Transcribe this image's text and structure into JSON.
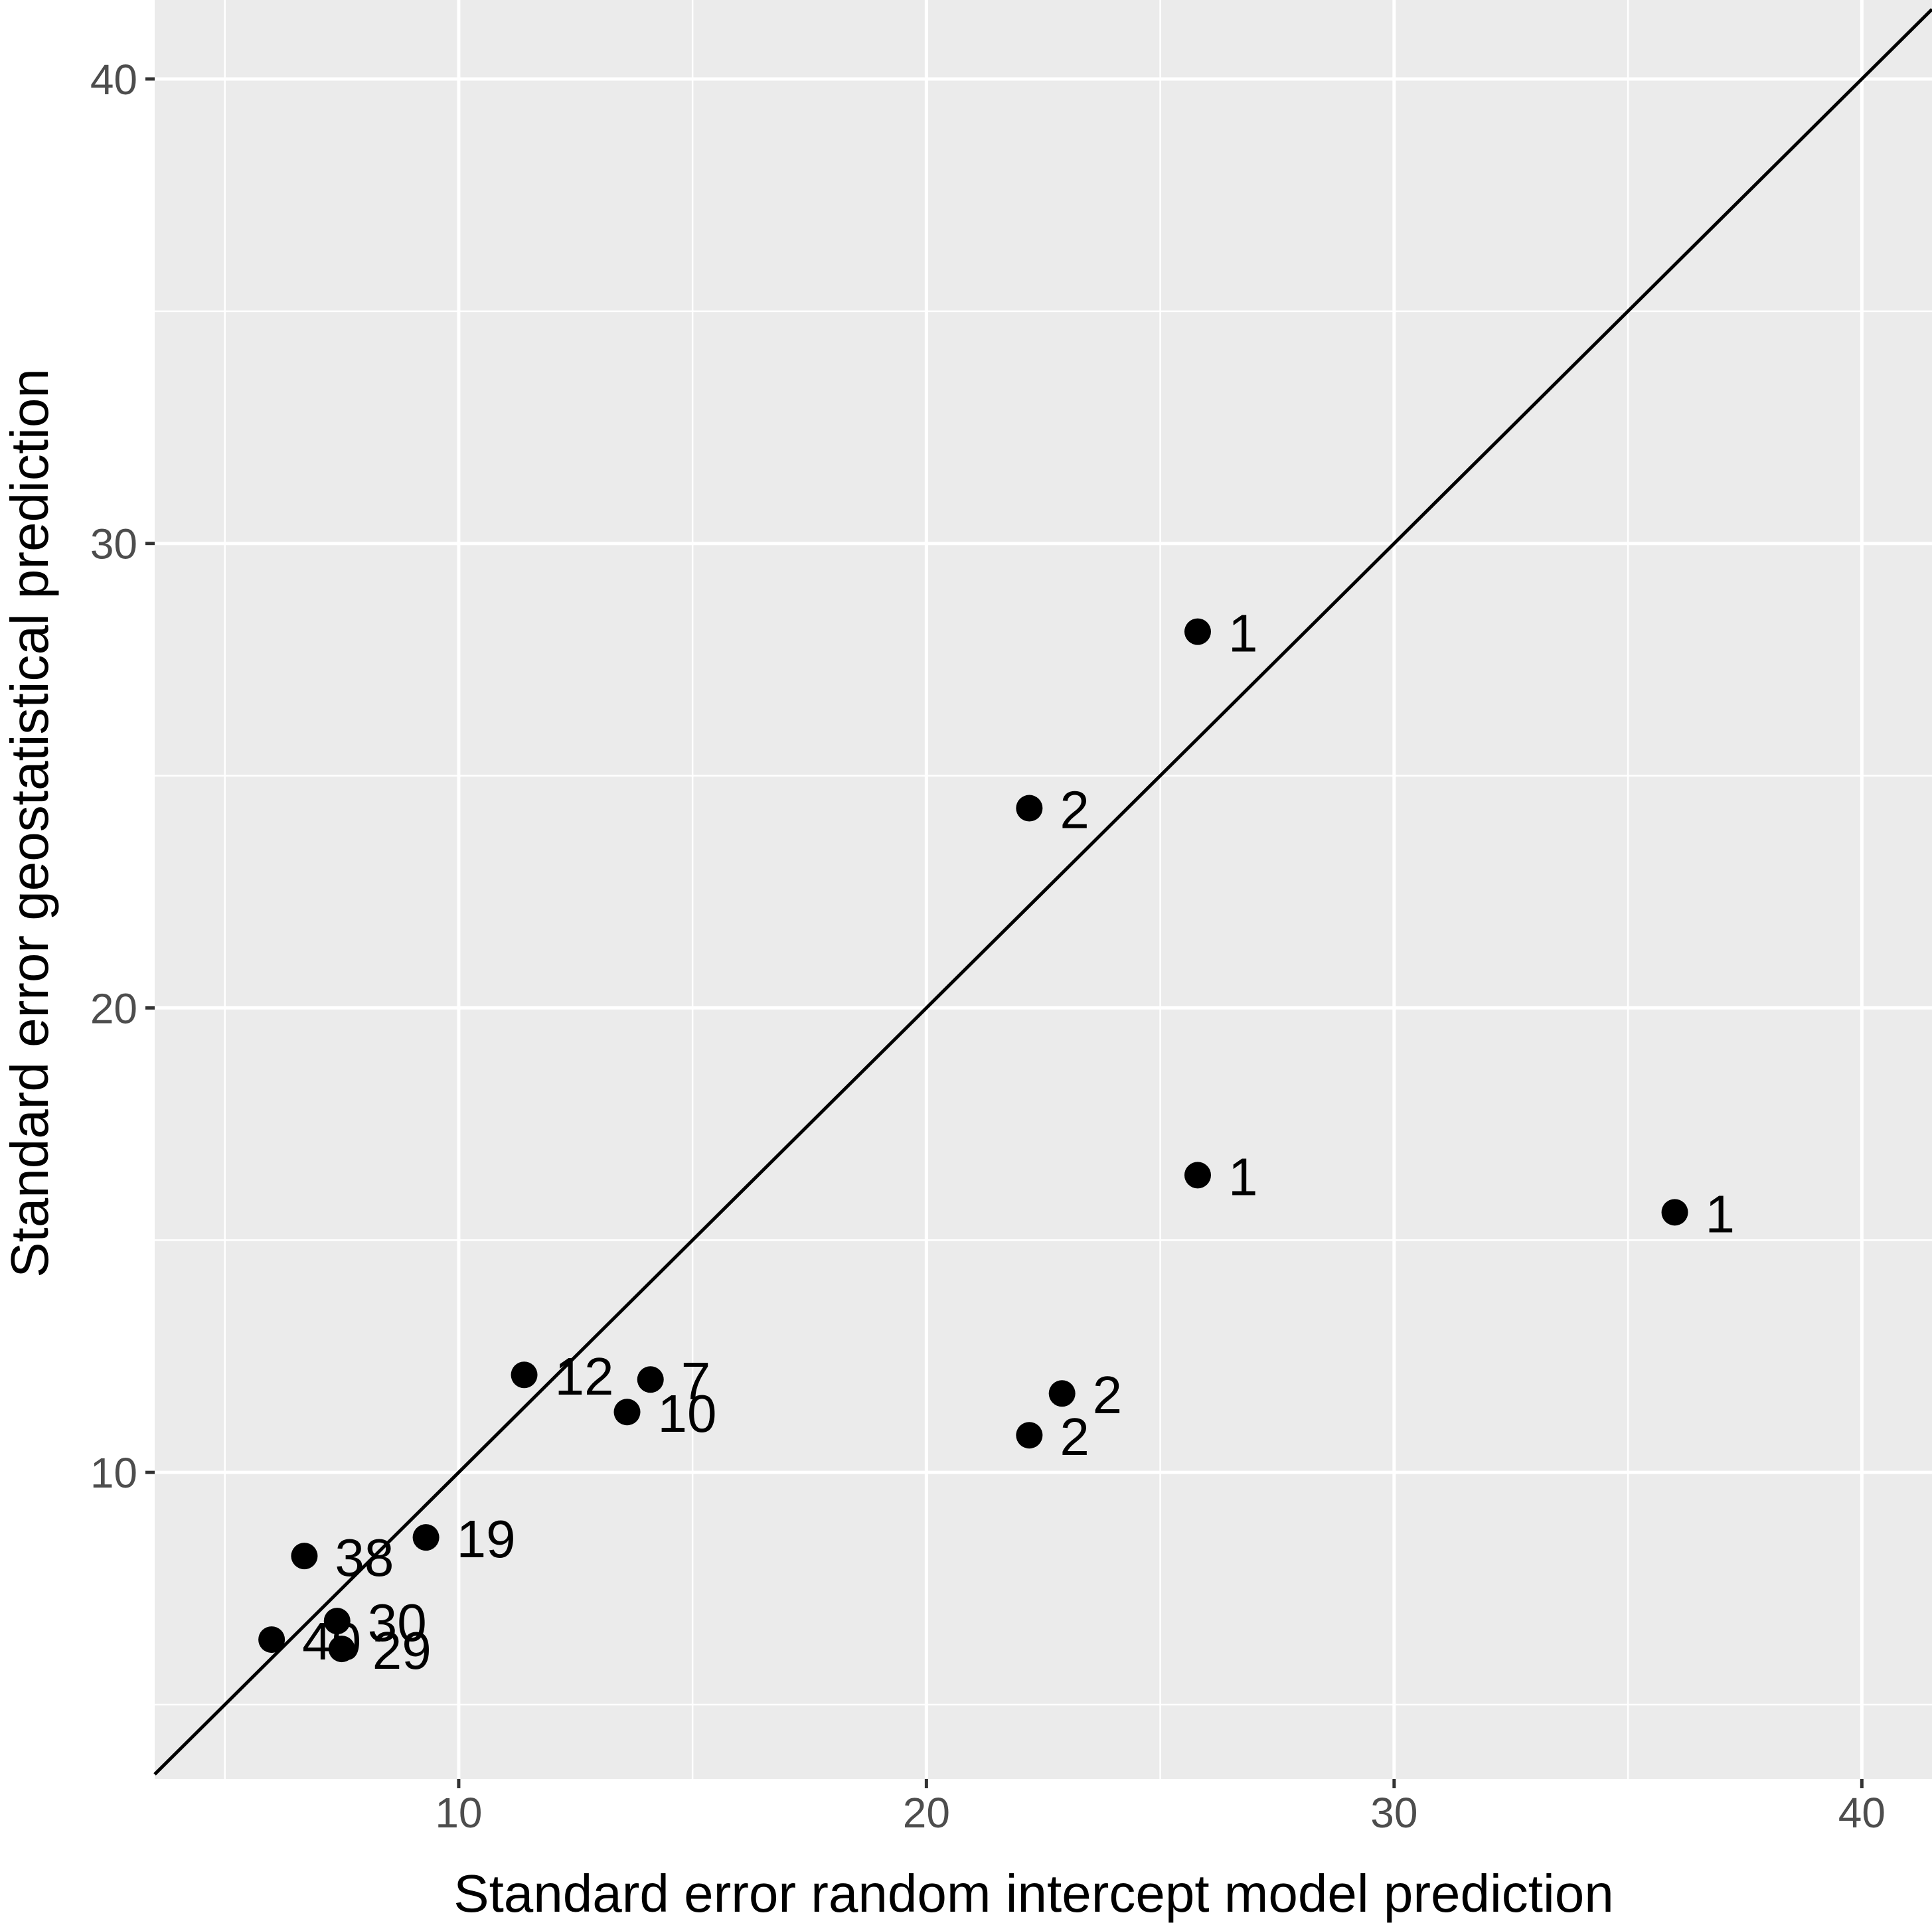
{
  "chart_data": {
    "type": "scatter",
    "title": "",
    "xlabel": "Standard error random intercept model prediction",
    "ylabel": "Standard error geostatistical prediction",
    "xlim": [
      3.5,
      41.5
    ],
    "ylim": [
      3.4,
      41.7
    ],
    "x_ticks": [
      10,
      20,
      30,
      40
    ],
    "y_ticks": [
      10,
      20,
      30,
      40
    ],
    "x_minor": [
      5,
      15,
      25,
      35
    ],
    "y_minor": [
      5,
      15,
      25,
      35
    ],
    "grid": true,
    "reference_line": "y = x",
    "colors": {
      "panel": "#ebebeb",
      "grid": "#ffffff",
      "points": "#000000",
      "tick_text": "#4d4d4d"
    },
    "points": [
      {
        "x": 25.8,
        "y": 28.1,
        "label": "1"
      },
      {
        "x": 22.2,
        "y": 24.3,
        "label": "2"
      },
      {
        "x": 25.8,
        "y": 16.4,
        "label": "1"
      },
      {
        "x": 36.0,
        "y": 15.6,
        "label": "1"
      },
      {
        "x": 22.9,
        "y": 11.7,
        "label": "2"
      },
      {
        "x": 22.2,
        "y": 10.8,
        "label": "2"
      },
      {
        "x": 11.4,
        "y": 12.1,
        "label": "12"
      },
      {
        "x": 14.1,
        "y": 12.0,
        "label": "7"
      },
      {
        "x": 13.6,
        "y": 11.3,
        "label": "10"
      },
      {
        "x": 9.3,
        "y": 8.6,
        "label": "19"
      },
      {
        "x": 6.7,
        "y": 8.2,
        "label": "38"
      },
      {
        "x": 7.4,
        "y": 6.8,
        "label": "30"
      },
      {
        "x": 6.0,
        "y": 6.4,
        "label": "40"
      },
      {
        "x": 7.5,
        "y": 6.2,
        "label": "29"
      }
    ]
  }
}
